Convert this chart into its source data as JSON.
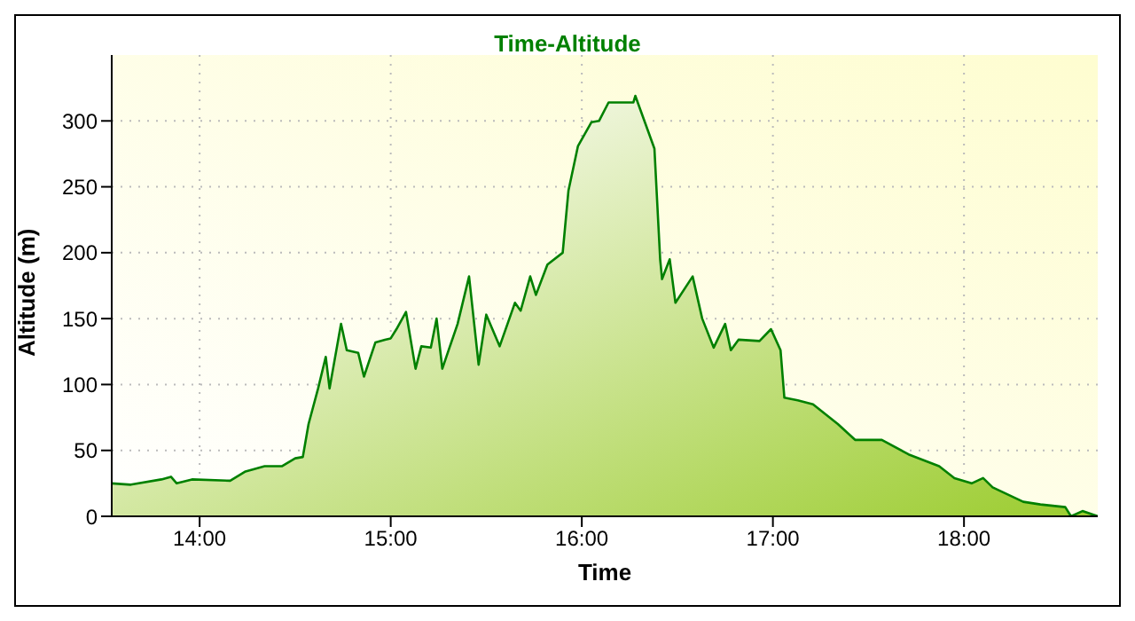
{
  "chart_data": {
    "type": "area",
    "title": "Time-Altitude",
    "xlabel": "Time",
    "ylabel": "Altitude (m)",
    "color": "#008000",
    "x": [
      13.54,
      13.64,
      13.8,
      13.85,
      13.88,
      13.96,
      14.16,
      14.24,
      14.34,
      14.43,
      14.5,
      14.54,
      14.57,
      14.62,
      14.66,
      14.68,
      14.74,
      14.77,
      14.83,
      14.86,
      14.92,
      14.97,
      15.0,
      15.03,
      15.08,
      15.13,
      15.16,
      15.21,
      15.24,
      15.27,
      15.35,
      15.41,
      15.46,
      15.5,
      15.57,
      15.65,
      15.68,
      15.73,
      15.76,
      15.82,
      15.9,
      15.93,
      15.98,
      16.05,
      16.09,
      16.14,
      16.27,
      16.28,
      16.33,
      16.38,
      16.41,
      16.42,
      16.46,
      16.49,
      16.58,
      16.63,
      16.69,
      16.75,
      16.78,
      16.82,
      16.93,
      16.99,
      17.04,
      17.06,
      17.13,
      17.21,
      17.34,
      17.43,
      17.57,
      17.71,
      17.87,
      17.95,
      18.04,
      18.1,
      18.15,
      18.31,
      18.4,
      18.53,
      18.56,
      18.62,
      18.7
    ],
    "values": [
      25,
      24,
      28,
      30,
      25,
      28,
      27,
      34,
      38,
      38,
      44,
      45,
      70,
      97,
      121,
      97,
      146,
      126,
      124,
      106,
      132,
      134,
      135,
      142,
      155,
      112,
      129,
      128,
      150,
      112,
      146,
      182,
      115,
      153,
      129,
      162,
      156,
      182,
      168,
      191,
      200,
      247,
      281,
      299,
      300,
      314,
      314,
      319,
      299,
      279,
      195,
      180,
      195,
      162,
      182,
      150,
      128,
      146,
      126,
      134,
      133,
      142,
      126,
      90,
      88,
      85,
      70,
      58,
      58,
      47,
      38,
      29,
      25,
      29,
      22,
      11,
      9,
      7,
      0,
      4,
      0
    ],
    "xlim": [
      13.54,
      18.7
    ],
    "xticks": [
      {
        "value": 14,
        "label": "14:00"
      },
      {
        "value": 15,
        "label": "15:00"
      },
      {
        "value": 16,
        "label": "16:00"
      },
      {
        "value": 17,
        "label": "17:00"
      },
      {
        "value": 18,
        "label": "18:00"
      }
    ],
    "ylim": [
      0,
      350
    ],
    "yticks": [
      0,
      50,
      100,
      150,
      200,
      250,
      300
    ],
    "grid": true
  }
}
